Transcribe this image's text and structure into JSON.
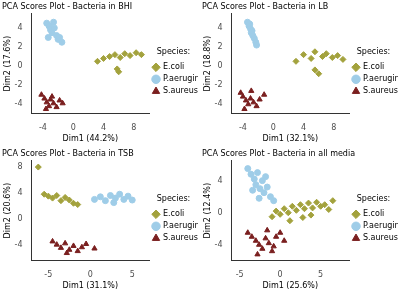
{
  "chart_data": [
    {
      "type": "scatter",
      "title": "PCA Scores Plot - Bacteria in BHI",
      "x_label": "Dim1 (44.2%)",
      "y_label": "Dim2 (17.6%)",
      "xlim": [
        -5.5,
        10
      ],
      "xticks": [
        -4,
        0,
        4,
        8
      ],
      "ylim": [
        -5,
        5.5
      ],
      "yticks": [
        -4,
        -2,
        0,
        2,
        4
      ],
      "grid": false,
      "legend": "right",
      "legend_title": "Species:",
      "series": [
        {
          "name": "E.coli",
          "color": "#a3a23d",
          "marker": "diamond",
          "x": [
            3.2,
            4.0,
            4.8,
            5.5,
            6.2,
            6.8,
            7.5,
            8.3,
            9.0,
            5.8,
            6.0
          ],
          "values": [
            0.5,
            0.8,
            1.0,
            1.2,
            0.9,
            1.3,
            1.1,
            1.4,
            1.2,
            -0.3,
            -0.6
          ]
        },
        {
          "name": "P.aeruginosa",
          "color": "#9fcde8",
          "marker": "circle",
          "x": [
            -3.5,
            -3.2,
            -3.0,
            -2.8,
            -2.5,
            -2.2,
            -2.0,
            -1.8,
            -1.5,
            -3.3,
            -2.6
          ],
          "values": [
            4.5,
            4.2,
            3.8,
            3.5,
            4.0,
            3.2,
            2.8,
            3.0,
            2.5,
            3.0,
            4.6
          ]
        },
        {
          "name": "S.aureus",
          "color": "#7a1f1f",
          "marker": "triangle",
          "x": [
            -4.2,
            -3.8,
            -3.5,
            -3.2,
            -3.0,
            -2.6,
            -2.2,
            -1.8,
            -1.4,
            -3.6,
            -2.8
          ],
          "values": [
            -3.0,
            -3.4,
            -3.8,
            -4.2,
            -3.5,
            -3.9,
            -4.3,
            -3.6,
            -3.9,
            -4.5,
            -3.2
          ]
        }
      ]
    },
    {
      "type": "scatter",
      "title": "PCA Scores Plot - Bacteria in LB",
      "x_label": "Dim1 (32.1%)",
      "y_label": "Dim2 (18.8%)",
      "xlim": [
        -5.5,
        10
      ],
      "xticks": [
        -4,
        0,
        4,
        8
      ],
      "ylim": [
        -5,
        5.5
      ],
      "yticks": [
        -4,
        -2,
        0,
        2,
        4
      ],
      "grid": false,
      "legend": "right",
      "legend_title": "Species:",
      "series": [
        {
          "name": "E.coli",
          "color": "#a3a23d",
          "marker": "diamond",
          "x": [
            3.0,
            4.0,
            5.0,
            5.5,
            6.5,
            7.0,
            7.8,
            8.5,
            9.2,
            5.5,
            6.0
          ],
          "values": [
            0.5,
            1.2,
            0.8,
            1.5,
            1.0,
            1.3,
            0.9,
            1.1,
            0.7,
            -0.4,
            -0.8
          ]
        },
        {
          "name": "P.aeruginosa",
          "color": "#9fcde8",
          "marker": "circle",
          "x": [
            -3.4,
            -3.2,
            -3.0,
            -2.9,
            -2.7,
            -2.5,
            -2.3,
            -2.2,
            -3.1,
            -2.8
          ],
          "values": [
            4.6,
            4.2,
            3.9,
            3.5,
            3.2,
            2.9,
            2.5,
            2.2,
            4.4,
            3.7
          ]
        },
        {
          "name": "S.aureus",
          "color": "#7a1f1f",
          "marker": "triangle",
          "x": [
            -4.3,
            -4.0,
            -3.6,
            -3.3,
            -3.0,
            -2.6,
            -2.2,
            -1.8,
            -1.2,
            -3.8,
            -2.9
          ],
          "values": [
            -2.8,
            -3.2,
            -3.6,
            -4.0,
            -3.4,
            -3.8,
            -4.2,
            -3.5,
            -3.0,
            -4.5,
            -2.6
          ]
        }
      ]
    },
    {
      "type": "scatter",
      "title": "PCA Scores Plot - Bacteria in TSB",
      "x_label": "Dim1 (31.1%)",
      "y_label": "Dim2 (20.6%)",
      "xlim": [
        -7,
        7
      ],
      "xticks": [
        -5,
        0,
        5
      ],
      "ylim": [
        -6.5,
        9
      ],
      "yticks": [
        -4,
        0,
        4,
        8
      ],
      "grid": false,
      "legend": "right",
      "legend_title": "Species:",
      "series": [
        {
          "name": "E.coli",
          "color": "#a3a23d",
          "marker": "diamond",
          "x": [
            -6.2,
            -5.5,
            -5.0,
            -4.5,
            -4.0,
            -3.5,
            -3.0,
            -2.5,
            -2.0,
            -1.5
          ],
          "values": [
            8.0,
            3.8,
            3.5,
            3.2,
            3.6,
            2.8,
            3.3,
            2.9,
            2.4,
            2.2
          ]
        },
        {
          "name": "P.aeruginosa",
          "color": "#9fcde8",
          "marker": "circle",
          "x": [
            0.5,
            1.2,
            1.8,
            2.4,
            3.0,
            3.5,
            4.0,
            4.5,
            5.0,
            2.8
          ],
          "values": [
            3.0,
            3.4,
            2.8,
            3.6,
            3.2,
            3.8,
            3.0,
            3.5,
            2.9,
            2.5
          ]
        },
        {
          "name": "S.aureus",
          "color": "#7a1f1f",
          "marker": "triangle",
          "x": [
            -4.5,
            -4.0,
            -3.5,
            -3.0,
            -2.5,
            -2.0,
            -1.5,
            -1.0,
            -0.5,
            0.5,
            -2.8
          ],
          "values": [
            -3.5,
            -4.0,
            -4.5,
            -3.8,
            -4.8,
            -4.2,
            -5.0,
            -4.4,
            -3.9,
            -4.6,
            -5.3
          ]
        }
      ]
    },
    {
      "type": "scatter",
      "title": "PCA Scores Plot - Bacteria in all media",
      "x_label": "Dim1 (25.6%)",
      "y_label": "Dim2 (12.4%)",
      "xlim": [
        -6,
        8.5
      ],
      "xticks": [
        -5,
        0,
        5
      ],
      "ylim": [
        -6,
        6.5
      ],
      "yticks": [
        -4,
        0,
        4
      ],
      "grid": false,
      "legend": "right",
      "legend_title": "Species:",
      "series": [
        {
          "name": "E.coli",
          "color": "#a3a23d",
          "marker": "diamond",
          "x": [
            -1.0,
            -0.5,
            0.0,
            0.5,
            1.0,
            1.5,
            2.0,
            2.5,
            3.0,
            3.5,
            4.0,
            4.5,
            5.0,
            5.5,
            6.0,
            6.5,
            1.2,
            2.8,
            3.8
          ],
          "values": [
            -0.5,
            0.2,
            -0.2,
            0.5,
            0.0,
            0.8,
            0.3,
            1.0,
            0.5,
            1.2,
            0.6,
            1.3,
            0.8,
            1.0,
            0.4,
            1.5,
            -1.0,
            -0.6,
            -0.3
          ]
        },
        {
          "name": "P.aeruginosa",
          "color": "#9fcde8",
          "marker": "circle",
          "x": [
            -4.0,
            -3.6,
            -3.2,
            -3.0,
            -2.8,
            -2.5,
            -2.2,
            -2.0,
            -1.6,
            -1.2,
            -0.8,
            -3.4,
            -2.6,
            -1.8
          ],
          "values": [
            5.5,
            4.8,
            4.2,
            3.5,
            5.0,
            3.0,
            4.0,
            2.5,
            3.2,
            2.0,
            1.5,
            2.8,
            1.8,
            4.5
          ]
        },
        {
          "name": "S.aureus",
          "color": "#7a1f1f",
          "marker": "triangle",
          "x": [
            -4.0,
            -3.5,
            -3.0,
            -2.6,
            -2.2,
            -1.8,
            -1.4,
            -1.0,
            -0.5,
            0.0,
            0.5,
            -2.8,
            -1.6,
            -0.8
          ],
          "values": [
            -2.5,
            -3.0,
            -3.5,
            -4.0,
            -4.5,
            -3.2,
            -3.8,
            -4.8,
            -3.0,
            -2.5,
            -3.5,
            -5.2,
            -2.2,
            -4.2
          ]
        }
      ]
    }
  ]
}
